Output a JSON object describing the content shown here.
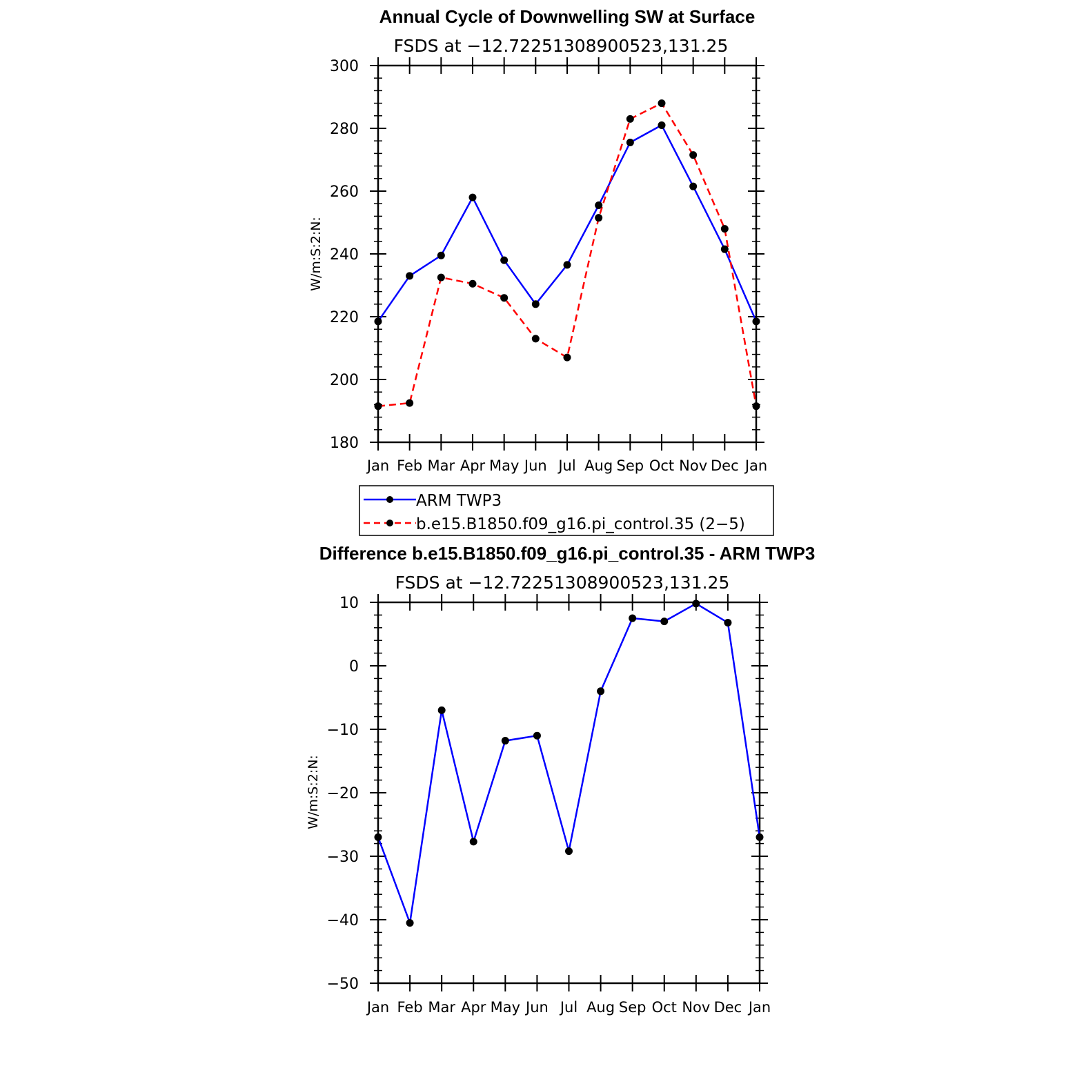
{
  "colors": {
    "series_obs": "#0000ff",
    "series_model": "#ff0000",
    "marker": "#000000",
    "axis": "#000000"
  },
  "chart_data": [
    {
      "type": "line",
      "title": "Annual Cycle of Downwelling SW at Surface",
      "subtitle": "FSDS at −12.72251308900523,131.25",
      "xlabel": "",
      "ylabel": "W/m:S:2:N:",
      "categories": [
        "Jan",
        "Feb",
        "Mar",
        "Apr",
        "May",
        "Jun",
        "Jul",
        "Aug",
        "Sep",
        "Oct",
        "Nov",
        "Dec",
        "Jan"
      ],
      "ylim": [
        180,
        300
      ],
      "yticks": [
        "180",
        "200",
        "220",
        "240",
        "260",
        "280",
        "300"
      ],
      "grid": false,
      "legend_position": "below",
      "series": [
        {
          "name": "ARM TWP3",
          "style": "solid",
          "values": [
            218.5,
            233.0,
            239.5,
            258.0,
            238.0,
            224.0,
            236.5,
            255.5,
            275.5,
            281.0,
            261.5,
            241.5,
            218.5
          ]
        },
        {
          "name": "b.e15.B1850.f09_g16.pi_control.35 (2−5)",
          "style": "dashed",
          "values": [
            191.5,
            192.5,
            232.5,
            230.5,
            226.0,
            213.0,
            207.0,
            251.5,
            283.0,
            288.0,
            271.5,
            248.0,
            191.5
          ]
        }
      ]
    },
    {
      "type": "line",
      "title": "Difference b.e15.B1850.f09_g16.pi_control.35 - ARM TWP3",
      "subtitle": "FSDS at −12.72251308900523,131.25",
      "xlabel": "",
      "ylabel": "W/m:S:2:N:",
      "categories": [
        "Jan",
        "Feb",
        "Mar",
        "Apr",
        "May",
        "Jun",
        "Jul",
        "Aug",
        "Sep",
        "Oct",
        "Nov",
        "Dec",
        "Jan"
      ],
      "ylim": [
        -50,
        10
      ],
      "yticks": [
        "−50",
        "−40",
        "−30",
        "−20",
        "−10",
        "0",
        "10"
      ],
      "grid": false,
      "series": [
        {
          "style": "solid",
          "values": [
            -27.0,
            -40.5,
            -7.0,
            -27.7,
            -11.8,
            -11.0,
            -29.2,
            -4.0,
            7.5,
            7.0,
            9.8,
            6.8,
            -27.0
          ]
        }
      ]
    }
  ]
}
